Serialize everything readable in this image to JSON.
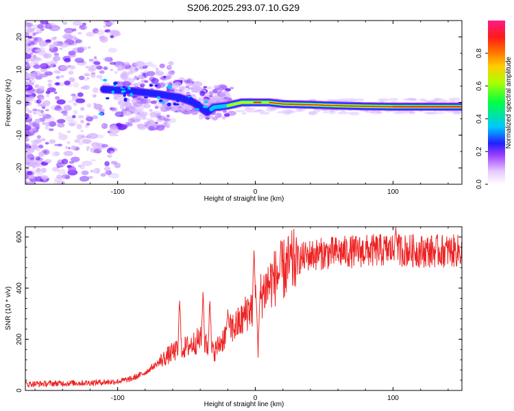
{
  "title": "S206.2025.293.07.10.G29",
  "chart_data": [
    {
      "type": "heatmap",
      "id": "spectrogram",
      "xlabel": "Height of straight line (km)",
      "ylabel": "Frequency (Hz)",
      "xlim": [
        -167,
        150
      ],
      "ylim": [
        -25,
        25
      ],
      "xticks": [
        -100,
        0,
        100
      ],
      "yticks": [
        -20,
        -10,
        0,
        10,
        20
      ],
      "xtick_labels": [
        "-100",
        "0",
        "100"
      ],
      "ytick_labels": [
        "-20",
        "-10",
        "0",
        "10",
        "20"
      ],
      "colorbar": {
        "label": "Normalized spectral amplitude",
        "range": [
          0,
          1
        ],
        "ticks": [
          0.0,
          0.2,
          0.4,
          0.6,
          0.8
        ],
        "tick_labels": [
          "0.0",
          "0.2",
          "0.4",
          "0.6",
          "0.8"
        ]
      },
      "ridge": {
        "description": "dominant frequency ridge",
        "x": [
          -110,
          -90,
          -70,
          -55,
          -45,
          -40,
          -35,
          -30,
          -20,
          -10,
          0,
          10,
          20,
          40,
          60,
          80,
          100,
          120,
          150
        ],
        "y": [
          4,
          3.5,
          2.5,
          1.5,
          0,
          -1.5,
          -3,
          -1.5,
          -1,
          0,
          0,
          0,
          -0.5,
          -0.7,
          -1,
          -1.2,
          -1.3,
          -1.3,
          -1.3
        ],
        "amplitude": [
          0.3,
          0.35,
          0.4,
          0.35,
          0.3,
          0.35,
          0.3,
          0.5,
          0.6,
          0.7,
          0.95,
          0.85,
          0.9,
          0.88,
          0.85,
          0.88,
          0.9,
          0.9,
          0.9
        ]
      }
    },
    {
      "type": "line",
      "id": "snr",
      "xlabel": "Height of straight line (km)",
      "ylabel": "SNR (10 * v/v)",
      "xlim": [
        -167,
        150
      ],
      "ylim": [
        0,
        640
      ],
      "xticks": [
        -100,
        0,
        100
      ],
      "yticks": [
        0,
        200,
        400,
        600
      ],
      "xtick_labels": [
        "-100",
        "0",
        "100"
      ],
      "ytick_labels": [
        "0",
        "200",
        "400",
        "600"
      ],
      "series": [
        {
          "name": "SNR",
          "color": "#ee2222",
          "x": [
            -167,
            -140,
            -120,
            -100,
            -90,
            -80,
            -70,
            -60,
            -50,
            -40,
            -30,
            -20,
            -10,
            -5,
            0,
            5,
            10,
            20,
            30,
            40,
            60,
            80,
            100,
            120,
            150
          ],
          "y": [
            25,
            28,
            30,
            35,
            45,
            70,
            110,
            150,
            170,
            200,
            150,
            230,
            270,
            320,
            330,
            380,
            420,
            470,
            510,
            530,
            540,
            545,
            550,
            545,
            545
          ]
        }
      ],
      "spikes": [
        {
          "x": -55,
          "y": 430
        },
        {
          "x": -38,
          "y": 440
        },
        {
          "x": -33,
          "y": 420
        },
        {
          "x": -20,
          "y": 330
        },
        {
          "x": -1,
          "y": 600
        },
        {
          "x": 2,
          "y": 120
        },
        {
          "x": 102,
          "y": 650
        }
      ]
    }
  ],
  "colors": {
    "axis": "#000000",
    "line": "#ee2222",
    "ridge_core": "#ff1a1a"
  }
}
